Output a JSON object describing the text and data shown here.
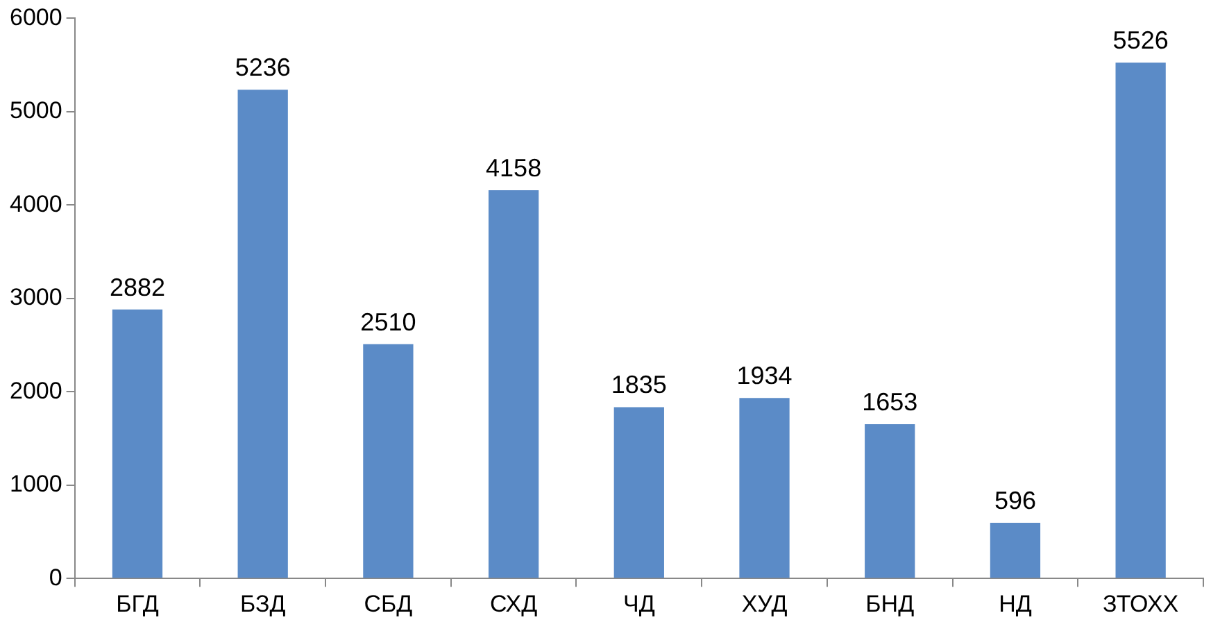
{
  "chart_data": {
    "type": "bar",
    "categories": [
      "БГД",
      "БЗД",
      "СБД",
      "СХД",
      "ЧД",
      "ХУД",
      "БНД",
      "НД",
      "ЗТОХХ"
    ],
    "values": [
      2882,
      5236,
      2510,
      4158,
      1835,
      1934,
      1653,
      596,
      5526
    ],
    "color": "#5b8bc7",
    "ylim": [
      0,
      6000
    ],
    "yticks": [
      0,
      1000,
      2000,
      3000,
      4000,
      5000,
      6000
    ],
    "grid": false,
    "data_labels": true,
    "legend": false
  }
}
